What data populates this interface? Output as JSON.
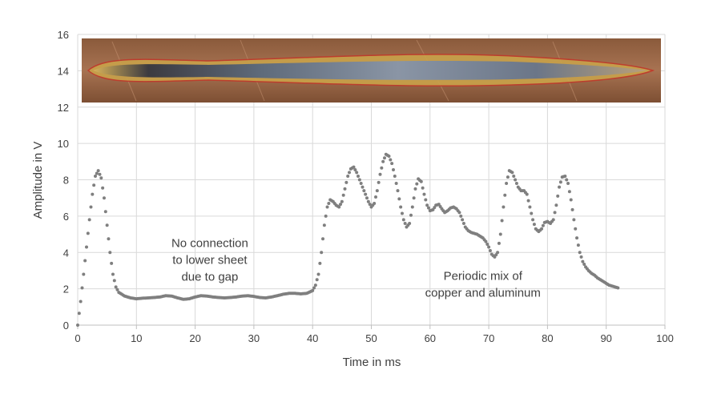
{
  "chart_data": {
    "type": "scatter",
    "title": "",
    "xlabel": "Time in ms",
    "ylabel": "Amplitude in V",
    "xlim": [
      0,
      100
    ],
    "ylim": [
      0,
      16
    ],
    "x_ticks": [
      "0",
      "10",
      "20",
      "30",
      "40",
      "50",
      "60",
      "70",
      "80",
      "90",
      "100"
    ],
    "y_ticks": [
      "0",
      "2",
      "4",
      "6",
      "8",
      "10",
      "12",
      "14",
      "16"
    ],
    "grid": true,
    "legend": "none",
    "series_color": "#7f7f7f",
    "inset_image": {
      "description_icon": "weld-seam-photo"
    },
    "annotations": [
      {
        "lines": [
          "No connection",
          "to lower sheet",
          "due to gap"
        ],
        "x": 22.5,
        "y": 4.3
      },
      {
        "lines": [
          "Periodic mix of",
          "copper and aluminum"
        ],
        "x": 69,
        "y": 2.5
      }
    ],
    "series": [
      {
        "points": [
          [
            0,
            0
          ],
          [
            0.5,
            1.3
          ],
          [
            1,
            2.8
          ],
          [
            1.5,
            4.3
          ],
          [
            2,
            5.8
          ],
          [
            2.5,
            7.2
          ],
          [
            3,
            8.2
          ],
          [
            3.5,
            8.5
          ],
          [
            4,
            8.1
          ],
          [
            4.5,
            7
          ],
          [
            5,
            5.5
          ],
          [
            5.5,
            4
          ],
          [
            6,
            2.8
          ],
          [
            6.5,
            2.1
          ],
          [
            7,
            1.8
          ],
          [
            8,
            1.6
          ],
          [
            9,
            1.5
          ],
          [
            10,
            1.45
          ],
          [
            11,
            1.48
          ],
          [
            12,
            1.5
          ],
          [
            13,
            1.52
          ],
          [
            14,
            1.55
          ],
          [
            15,
            1.62
          ],
          [
            16,
            1.6
          ],
          [
            17,
            1.5
          ],
          [
            18,
            1.42
          ],
          [
            19,
            1.45
          ],
          [
            20,
            1.55
          ],
          [
            21,
            1.62
          ],
          [
            22,
            1.6
          ],
          [
            23,
            1.55
          ],
          [
            24,
            1.52
          ],
          [
            25,
            1.5
          ],
          [
            26,
            1.52
          ],
          [
            27,
            1.55
          ],
          [
            28,
            1.6
          ],
          [
            29,
            1.62
          ],
          [
            30,
            1.58
          ],
          [
            31,
            1.52
          ],
          [
            32,
            1.5
          ],
          [
            33,
            1.55
          ],
          [
            34,
            1.62
          ],
          [
            35,
            1.7
          ],
          [
            36,
            1.75
          ],
          [
            37,
            1.75
          ],
          [
            38,
            1.72
          ],
          [
            39,
            1.75
          ],
          [
            40,
            1.9
          ],
          [
            40.5,
            2.2
          ],
          [
            41,
            2.8
          ],
          [
            41.5,
            4
          ],
          [
            42,
            5.5
          ],
          [
            42.5,
            6.5
          ],
          [
            43,
            6.9
          ],
          [
            43.5,
            6.8
          ],
          [
            44,
            6.6
          ],
          [
            44.5,
            6.5
          ],
          [
            45,
            6.8
          ],
          [
            45.5,
            7.5
          ],
          [
            46,
            8.2
          ],
          [
            46.5,
            8.6
          ],
          [
            47,
            8.7
          ],
          [
            47.5,
            8.4
          ],
          [
            48,
            8
          ],
          [
            48.5,
            7.6
          ],
          [
            49,
            7.2
          ],
          [
            49.5,
            6.8
          ],
          [
            50,
            6.5
          ],
          [
            50.5,
            6.7
          ],
          [
            51,
            7.4
          ],
          [
            51.5,
            8.3
          ],
          [
            52,
            9
          ],
          [
            52.5,
            9.4
          ],
          [
            53,
            9.3
          ],
          [
            53.5,
            8.9
          ],
          [
            54,
            8.2
          ],
          [
            54.5,
            7.4
          ],
          [
            55,
            6.5
          ],
          [
            55.5,
            5.8
          ],
          [
            56,
            5.4
          ],
          [
            56.5,
            5.6
          ],
          [
            57,
            6.5
          ],
          [
            57.5,
            7.5
          ],
          [
            58,
            8.05
          ],
          [
            58.5,
            7.9
          ],
          [
            59,
            7.2
          ],
          [
            59.5,
            6.6
          ],
          [
            60,
            6.3
          ],
          [
            60.5,
            6.35
          ],
          [
            61,
            6.6
          ],
          [
            61.5,
            6.65
          ],
          [
            62,
            6.4
          ],
          [
            62.5,
            6.2
          ],
          [
            63,
            6.3
          ],
          [
            63.5,
            6.45
          ],
          [
            64,
            6.5
          ],
          [
            64.5,
            6.4
          ],
          [
            65,
            6.2
          ],
          [
            65.5,
            5.8
          ],
          [
            66,
            5.4
          ],
          [
            66.5,
            5.2
          ],
          [
            67,
            5.1
          ],
          [
            67.5,
            5.05
          ],
          [
            68,
            5
          ],
          [
            68.5,
            4.9
          ],
          [
            69,
            4.8
          ],
          [
            69.5,
            4.6
          ],
          [
            70,
            4.3
          ],
          [
            70.5,
            3.9
          ],
          [
            71,
            3.75
          ],
          [
            71.5,
            4
          ],
          [
            72,
            5
          ],
          [
            72.5,
            6.5
          ],
          [
            73,
            7.8
          ],
          [
            73.5,
            8.5
          ],
          [
            74,
            8.4
          ],
          [
            74.5,
            8
          ],
          [
            75,
            7.6
          ],
          [
            75.5,
            7.4
          ],
          [
            76,
            7.4
          ],
          [
            76.5,
            7.2
          ],
          [
            77,
            6.5
          ],
          [
            77.5,
            5.8
          ],
          [
            78,
            5.3
          ],
          [
            78.5,
            5.15
          ],
          [
            79,
            5.3
          ],
          [
            79.5,
            5.65
          ],
          [
            80,
            5.7
          ],
          [
            80.5,
            5.6
          ],
          [
            81,
            5.8
          ],
          [
            81.5,
            6.6
          ],
          [
            82,
            7.6
          ],
          [
            82.5,
            8.15
          ],
          [
            83,
            8.2
          ],
          [
            83.5,
            7.8
          ],
          [
            84,
            6.9
          ],
          [
            84.5,
            5.8
          ],
          [
            85,
            4.8
          ],
          [
            85.5,
            4
          ],
          [
            86,
            3.5
          ],
          [
            86.5,
            3.2
          ],
          [
            87,
            3
          ],
          [
            87.5,
            2.85
          ],
          [
            88,
            2.75
          ],
          [
            88.5,
            2.6
          ],
          [
            89,
            2.5
          ],
          [
            89.5,
            2.4
          ],
          [
            90,
            2.3
          ],
          [
            90.5,
            2.2
          ],
          [
            91,
            2.15
          ],
          [
            91.5,
            2.1
          ],
          [
            92,
            2.05
          ]
        ]
      }
    ]
  }
}
